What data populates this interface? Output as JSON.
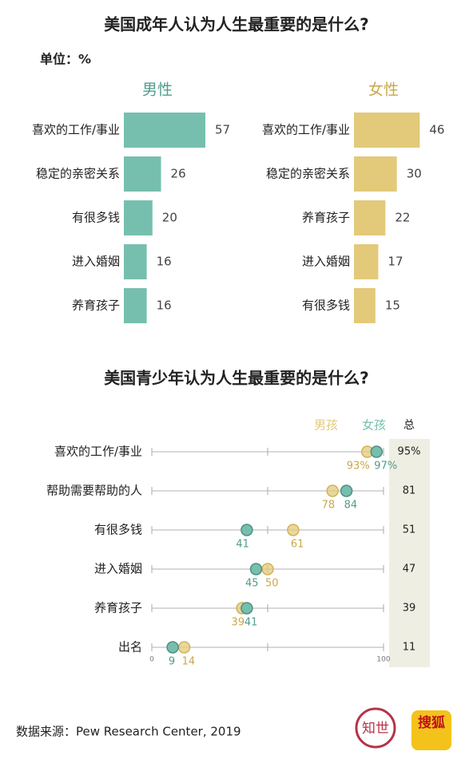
{
  "heading": "美国成年人认为人生最重要的是什么?",
  "unit": "单位：%",
  "chart_data": [
    {
      "type": "bar",
      "title": "男性",
      "color": "#76bfae",
      "categories": [
        "喜欢的工作/事业",
        "稳定的亲密关系",
        "有很多钱",
        "进入婚姻",
        "养育孩子"
      ],
      "values": [
        57,
        26,
        20,
        16,
        16
      ]
    },
    {
      "type": "bar",
      "title": "女性",
      "color": "#e3c97a",
      "categories": [
        "喜欢的工作/事业",
        "稳定的亲密关系",
        "养育孩子",
        "进入婚姻",
        "有很多钱"
      ],
      "values": [
        46,
        30,
        22,
        17,
        15
      ]
    },
    {
      "type": "dot",
      "title": "美国青少年认为人生最重要的是什么?",
      "categories": [
        "喜欢的工作/事业",
        "帮助需要帮助的人",
        "有很多钱",
        "进入婚姻",
        "养育孩子",
        "出名"
      ],
      "series": [
        {
          "name": "男孩",
          "color": "#e3c97a",
          "values": [
            93,
            78,
            61,
            50,
            39,
            14
          ],
          "value_labels": [
            "93%",
            "78",
            "61",
            "50",
            "39",
            "14"
          ]
        },
        {
          "name": "女孩",
          "color": "#76bfae",
          "values": [
            97,
            84,
            41,
            45,
            41,
            9
          ],
          "value_labels": [
            "97%",
            "84",
            "41",
            "45",
            "41",
            "9"
          ]
        }
      ],
      "total": {
        "name": "总",
        "values": [
          95,
          81,
          51,
          47,
          39,
          11
        ],
        "value_labels": [
          "95%",
          "81",
          "51",
          "47",
          "39",
          "11"
        ]
      },
      "xlim": [
        0,
        100
      ],
      "xticks": [
        0,
        100
      ]
    }
  ],
  "source": "数据来源：Pew Research Center, 2019",
  "logos": [
    "知世",
    "搜狐"
  ]
}
